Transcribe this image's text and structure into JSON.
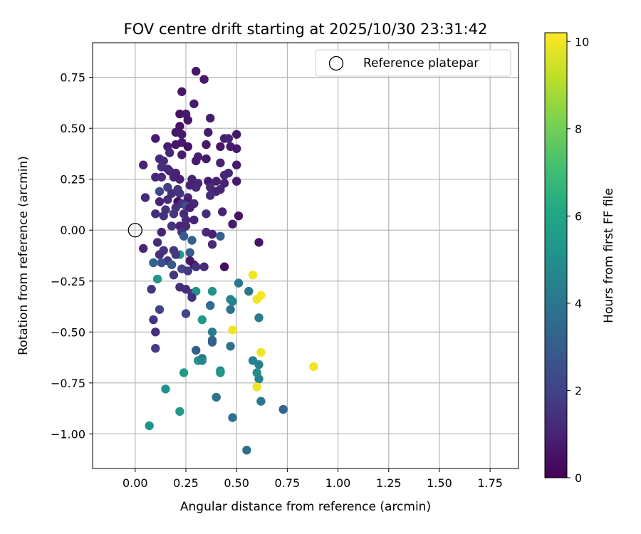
{
  "chart_data": {
    "type": "scatter",
    "title": "FOV centre drift starting at 2025/10/30 23:31:42",
    "xlabel": "Angular distance from reference (arcmin)",
    "ylabel": "Rotation from reference (arcmin)",
    "xlim": [
      -0.21,
      1.89
    ],
    "ylim": [
      -1.17,
      0.92
    ],
    "grid": true,
    "x_ticks": [
      0.0,
      0.25,
      0.5,
      0.75,
      1.0,
      1.25,
      1.5,
      1.75
    ],
    "x_tick_labels": [
      "0.00",
      "0.25",
      "0.50",
      "0.75",
      "1.00",
      "1.25",
      "1.50",
      "1.75"
    ],
    "y_ticks": [
      0.75,
      0.5,
      0.25,
      0.0,
      -0.25,
      -0.5,
      -0.75,
      -1.0
    ],
    "y_tick_labels": [
      "0.75",
      "0.50",
      "0.25",
      "0.00",
      "−0.25",
      "−0.50",
      "−0.75",
      "−1.00"
    ],
    "colormap": "viridis",
    "colorbar": {
      "label": "Hours from first FF file",
      "min": 0,
      "max": 10.2,
      "ticks": [
        0,
        2,
        4,
        6,
        8,
        10
      ],
      "tick_labels": [
        "0",
        "2",
        "4",
        "6",
        "8",
        "10"
      ]
    },
    "legend": {
      "placement": "top-right",
      "entries": [
        {
          "label": "Reference platepar",
          "marker": "open-circle"
        }
      ]
    },
    "reference_point": {
      "x": 0.0,
      "y": 0.0
    },
    "points": [
      {
        "x": 0.3,
        "y": 0.78,
        "h": 0.6
      },
      {
        "x": 0.34,
        "y": 0.74,
        "h": 0.7
      },
      {
        "x": 0.23,
        "y": 0.68,
        "h": 0.6
      },
      {
        "x": 0.29,
        "y": 0.62,
        "h": 0.7
      },
      {
        "x": 0.22,
        "y": 0.57,
        "h": 0.5
      },
      {
        "x": 0.25,
        "y": 0.57,
        "h": 0.7
      },
      {
        "x": 0.37,
        "y": 0.55,
        "h": 0.8
      },
      {
        "x": 0.26,
        "y": 0.54,
        "h": 0.6
      },
      {
        "x": 0.22,
        "y": 0.51,
        "h": 0.5
      },
      {
        "x": 0.2,
        "y": 0.48,
        "h": 0.6
      },
      {
        "x": 0.23,
        "y": 0.47,
        "h": 0.7
      },
      {
        "x": 0.36,
        "y": 0.48,
        "h": 0.8
      },
      {
        "x": 0.1,
        "y": 0.45,
        "h": 0.8
      },
      {
        "x": 0.44,
        "y": 0.45,
        "h": 0.9
      },
      {
        "x": 0.46,
        "y": 0.45,
        "h": 1.0
      },
      {
        "x": 0.5,
        "y": 0.47,
        "h": 0.6
      },
      {
        "x": 0.23,
        "y": 0.43,
        "h": 0.7
      },
      {
        "x": 0.2,
        "y": 0.42,
        "h": 0.6
      },
      {
        "x": 0.16,
        "y": 0.41,
        "h": 0.8
      },
      {
        "x": 0.26,
        "y": 0.41,
        "h": 0.5
      },
      {
        "x": 0.35,
        "y": 0.42,
        "h": 0.7
      },
      {
        "x": 0.42,
        "y": 0.41,
        "h": 0.6
      },
      {
        "x": 0.47,
        "y": 0.41,
        "h": 0.8
      },
      {
        "x": 0.5,
        "y": 0.4,
        "h": 0.7
      },
      {
        "x": 0.17,
        "y": 0.38,
        "h": 1.1
      },
      {
        "x": 0.23,
        "y": 0.37,
        "h": 0.8
      },
      {
        "x": 0.31,
        "y": 0.36,
        "h": 0.9
      },
      {
        "x": 0.35,
        "y": 0.35,
        "h": 0.7
      },
      {
        "x": 0.12,
        "y": 0.35,
        "h": 1.3
      },
      {
        "x": 0.14,
        "y": 0.34,
        "h": 1.2
      },
      {
        "x": 0.3,
        "y": 0.34,
        "h": 0.8
      },
      {
        "x": 0.42,
        "y": 0.33,
        "h": 0.9
      },
      {
        "x": 0.5,
        "y": 0.32,
        "h": 0.7
      },
      {
        "x": 0.04,
        "y": 0.32,
        "h": 1.0
      },
      {
        "x": 0.13,
        "y": 0.31,
        "h": 1.4
      },
      {
        "x": 0.16,
        "y": 0.3,
        "h": 1.3
      },
      {
        "x": 0.17,
        "y": 0.29,
        "h": 1.2
      },
      {
        "x": 0.2,
        "y": 0.28,
        "h": 1.0
      },
      {
        "x": 0.46,
        "y": 0.28,
        "h": 1.2
      },
      {
        "x": 0.44,
        "y": 0.27,
        "h": 1.1
      },
      {
        "x": 0.1,
        "y": 0.26,
        "h": 1.1
      },
      {
        "x": 0.13,
        "y": 0.26,
        "h": 1.2
      },
      {
        "x": 0.19,
        "y": 0.26,
        "h": 1.0
      },
      {
        "x": 0.22,
        "y": 0.25,
        "h": 0.9
      },
      {
        "x": 0.28,
        "y": 0.25,
        "h": 1.0
      },
      {
        "x": 0.36,
        "y": 0.24,
        "h": 0.8
      },
      {
        "x": 0.4,
        "y": 0.24,
        "h": 0.9
      },
      {
        "x": 0.44,
        "y": 0.23,
        "h": 1.0
      },
      {
        "x": 0.5,
        "y": 0.24,
        "h": 0.7
      },
      {
        "x": 0.31,
        "y": 0.23,
        "h": 1.1
      },
      {
        "x": 0.27,
        "y": 0.22,
        "h": 1.0
      },
      {
        "x": 0.37,
        "y": 0.21,
        "h": 1.2
      },
      {
        "x": 0.3,
        "y": 0.21,
        "h": 1.1
      },
      {
        "x": 0.16,
        "y": 0.21,
        "h": 1.9
      },
      {
        "x": 0.21,
        "y": 0.2,
        "h": 1.5
      },
      {
        "x": 0.42,
        "y": 0.2,
        "h": 1.1
      },
      {
        "x": 0.4,
        "y": 0.19,
        "h": 1.0
      },
      {
        "x": 0.12,
        "y": 0.19,
        "h": 2.2
      },
      {
        "x": 0.18,
        "y": 0.18,
        "h": 1.4
      },
      {
        "x": 0.22,
        "y": 0.18,
        "h": 1.6
      },
      {
        "x": 0.37,
        "y": 0.17,
        "h": 1.3
      },
      {
        "x": 0.05,
        "y": 0.16,
        "h": 1.2
      },
      {
        "x": 0.26,
        "y": 0.16,
        "h": 1.1
      },
      {
        "x": 0.16,
        "y": 0.15,
        "h": 1.3
      },
      {
        "x": 0.21,
        "y": 0.14,
        "h": 0.4
      },
      {
        "x": 0.12,
        "y": 0.14,
        "h": 1.0
      },
      {
        "x": 0.26,
        "y": 0.14,
        "h": 0.8
      },
      {
        "x": 0.23,
        "y": 0.13,
        "h": 1.5
      },
      {
        "x": 0.25,
        "y": 0.12,
        "h": 2.4
      },
      {
        "x": 0.29,
        "y": 0.13,
        "h": 1.1
      },
      {
        "x": 0.27,
        "y": 0.11,
        "h": 0.9
      },
      {
        "x": 0.2,
        "y": 0.11,
        "h": 1.4
      },
      {
        "x": 0.15,
        "y": 0.1,
        "h": 1.5
      },
      {
        "x": 0.43,
        "y": 0.09,
        "h": 1.0
      },
      {
        "x": 0.24,
        "y": 0.08,
        "h": 1.2
      },
      {
        "x": 0.19,
        "y": 0.08,
        "h": 1.6
      },
      {
        "x": 0.1,
        "y": 0.08,
        "h": 1.3
      },
      {
        "x": 0.14,
        "y": 0.07,
        "h": 1.4
      },
      {
        "x": 0.35,
        "y": 0.08,
        "h": 1.3
      },
      {
        "x": 0.51,
        "y": 0.07,
        "h": 0.5
      },
      {
        "x": 0.25,
        "y": 0.05,
        "h": 1.3
      },
      {
        "x": 0.29,
        "y": 0.05,
        "h": 1.0
      },
      {
        "x": 0.48,
        "y": 0.03,
        "h": 0.8
      },
      {
        "x": 0.18,
        "y": 0.02,
        "h": 1.5
      },
      {
        "x": 0.22,
        "y": 0.02,
        "h": 1.0
      },
      {
        "x": 0.25,
        "y": 0.02,
        "h": 1.1
      },
      {
        "x": 0.13,
        "y": -0.01,
        "h": 1.0
      },
      {
        "x": 0.23,
        "y": -0.01,
        "h": 1.6
      },
      {
        "x": 0.35,
        "y": -0.01,
        "h": 1.2
      },
      {
        "x": 0.38,
        "y": -0.02,
        "h": 1.0
      },
      {
        "x": 0.42,
        "y": -0.03,
        "h": 3.2
      },
      {
        "x": 0.24,
        "y": -0.03,
        "h": 2.9
      },
      {
        "x": 0.28,
        "y": -0.05,
        "h": 3.1
      },
      {
        "x": 0.61,
        "y": -0.06,
        "h": 0.6
      },
      {
        "x": 0.38,
        "y": -0.07,
        "h": 1.2
      },
      {
        "x": 0.11,
        "y": -0.06,
        "h": 1.3
      },
      {
        "x": 0.04,
        "y": -0.09,
        "h": 1.1
      },
      {
        "x": 0.14,
        "y": -0.1,
        "h": 1.5
      },
      {
        "x": 0.19,
        "y": -0.1,
        "h": 1.6
      },
      {
        "x": 0.27,
        "y": -0.11,
        "h": 3.0
      },
      {
        "x": 0.12,
        "y": -0.12,
        "h": 1.4
      },
      {
        "x": 0.22,
        "y": -0.12,
        "h": 5.5
      },
      {
        "x": 0.2,
        "y": -0.12,
        "h": 1.7
      },
      {
        "x": 0.16,
        "y": -0.15,
        "h": 1.7
      },
      {
        "x": 0.27,
        "y": -0.15,
        "h": 0.7
      },
      {
        "x": 0.13,
        "y": -0.16,
        "h": 2.5
      },
      {
        "x": 0.09,
        "y": -0.16,
        "h": 3.2
      },
      {
        "x": 0.18,
        "y": -0.17,
        "h": 2.8
      },
      {
        "x": 0.29,
        "y": -0.17,
        "h": 0.5
      },
      {
        "x": 0.3,
        "y": -0.18,
        "h": 1.4
      },
      {
        "x": 0.44,
        "y": -0.18,
        "h": 0.4
      },
      {
        "x": 0.34,
        "y": -0.18,
        "h": 1.2
      },
      {
        "x": 0.23,
        "y": -0.19,
        "h": 2.1
      },
      {
        "x": 0.26,
        "y": -0.2,
        "h": 1.8
      },
      {
        "x": 0.19,
        "y": -0.22,
        "h": 1.6
      },
      {
        "x": 0.58,
        "y": -0.22,
        "h": 10.0
      },
      {
        "x": 0.11,
        "y": -0.24,
        "h": 5.3
      },
      {
        "x": 0.51,
        "y": -0.26,
        "h": 4.1
      },
      {
        "x": 0.22,
        "y": -0.28,
        "h": 1.3
      },
      {
        "x": 0.08,
        "y": -0.29,
        "h": 1.6
      },
      {
        "x": 0.25,
        "y": -0.29,
        "h": 1.2
      },
      {
        "x": 0.56,
        "y": -0.3,
        "h": 4.0
      },
      {
        "x": 0.28,
        "y": -0.31,
        "h": 1.5
      },
      {
        "x": 0.38,
        "y": -0.3,
        "h": 5.2
      },
      {
        "x": 0.3,
        "y": -0.3,
        "h": 5.1
      },
      {
        "x": 0.62,
        "y": -0.32,
        "h": 10.1
      },
      {
        "x": 0.28,
        "y": -0.33,
        "h": 1.4
      },
      {
        "x": 0.6,
        "y": -0.34,
        "h": 10.0
      },
      {
        "x": 0.47,
        "y": -0.34,
        "h": 4.4
      },
      {
        "x": 0.48,
        "y": -0.35,
        "h": 4.6
      },
      {
        "x": 0.37,
        "y": -0.37,
        "h": 3.6
      },
      {
        "x": 0.47,
        "y": -0.39,
        "h": 3.8
      },
      {
        "x": 0.12,
        "y": -0.39,
        "h": 2.0
      },
      {
        "x": 0.25,
        "y": -0.41,
        "h": 2.1
      },
      {
        "x": 0.61,
        "y": -0.43,
        "h": 4.2
      },
      {
        "x": 0.33,
        "y": -0.44,
        "h": 5.4
      },
      {
        "x": 0.09,
        "y": -0.44,
        "h": 1.6
      },
      {
        "x": 0.48,
        "y": -0.49,
        "h": 10.0
      },
      {
        "x": 0.38,
        "y": -0.5,
        "h": 4.3
      },
      {
        "x": 0.1,
        "y": -0.5,
        "h": 1.4
      },
      {
        "x": 0.38,
        "y": -0.54,
        "h": 3.6
      },
      {
        "x": 0.38,
        "y": -0.55,
        "h": 3.2
      },
      {
        "x": 0.47,
        "y": -0.57,
        "h": 3.9
      },
      {
        "x": 0.1,
        "y": -0.58,
        "h": 1.8
      },
      {
        "x": 0.3,
        "y": -0.59,
        "h": 3.1
      },
      {
        "x": 0.62,
        "y": -0.6,
        "h": 10.0
      },
      {
        "x": 0.33,
        "y": -0.63,
        "h": 3.4
      },
      {
        "x": 0.58,
        "y": -0.64,
        "h": 4.5
      },
      {
        "x": 0.31,
        "y": -0.64,
        "h": 5.3
      },
      {
        "x": 0.33,
        "y": -0.64,
        "h": 4.6
      },
      {
        "x": 0.61,
        "y": -0.66,
        "h": 4.4
      },
      {
        "x": 0.88,
        "y": -0.67,
        "h": 10.0
      },
      {
        "x": 0.42,
        "y": -0.69,
        "h": 4.8
      },
      {
        "x": 0.6,
        "y": -0.7,
        "h": 4.9
      },
      {
        "x": 0.42,
        "y": -0.7,
        "h": 5.3
      },
      {
        "x": 0.24,
        "y": -0.7,
        "h": 5.6
      },
      {
        "x": 0.61,
        "y": -0.73,
        "h": 4.7
      },
      {
        "x": 0.6,
        "y": -0.77,
        "h": 10.0
      },
      {
        "x": 0.15,
        "y": -0.78,
        "h": 5.1
      },
      {
        "x": 0.4,
        "y": -0.82,
        "h": 3.9
      },
      {
        "x": 0.62,
        "y": -0.84,
        "h": 4.0
      },
      {
        "x": 0.73,
        "y": -0.88,
        "h": 3.4
      },
      {
        "x": 0.22,
        "y": -0.89,
        "h": 5.4
      },
      {
        "x": 0.48,
        "y": -0.92,
        "h": 3.8
      },
      {
        "x": 0.07,
        "y": -0.96,
        "h": 5.2
      },
      {
        "x": 0.55,
        "y": -1.08,
        "h": 3.7
      }
    ]
  }
}
